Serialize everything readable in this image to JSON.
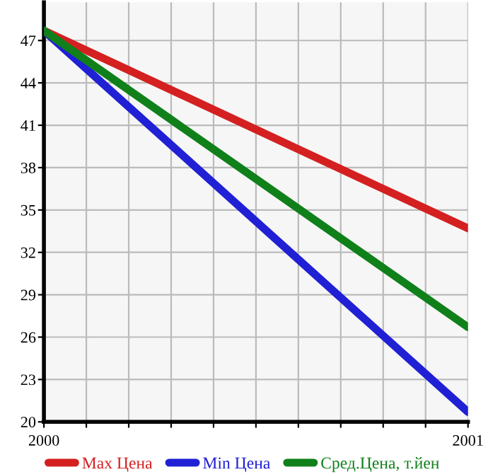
{
  "chart_data": {
    "type": "line",
    "x": [
      2000,
      2001
    ],
    "series": [
      {
        "name": "Max Цена",
        "color": "#d42020",
        "values": [
          47.7,
          33.7
        ]
      },
      {
        "name": "Min Цена",
        "color": "#2020d4",
        "values": [
          47.7,
          20.7
        ]
      },
      {
        "name": "Сред.Цена, т.йен",
        "color": "#10801a",
        "values": [
          47.7,
          26.7
        ]
      }
    ],
    "xlim": [
      2000,
      2001
    ],
    "ylim": [
      20,
      49.7
    ],
    "xticks": [
      2000,
      {
        "value": 2000.1,
        "label": null
      },
      {
        "value": 2000.2,
        "label": null
      },
      {
        "value": 2000.3,
        "label": null
      },
      {
        "value": 2000.4,
        "label": null
      },
      {
        "value": 2000.5,
        "label": null
      },
      {
        "value": 2000.6,
        "label": null
      },
      {
        "value": 2000.7,
        "label": null
      },
      {
        "value": 2000.8,
        "label": null
      },
      {
        "value": 2000.9,
        "label": null
      },
      2001
    ],
    "yticks": [
      20,
      23,
      26,
      29,
      32,
      35,
      38,
      41,
      44,
      47
    ],
    "grid": true,
    "legend": "bottom",
    "marker": "none",
    "line_style": "solid"
  }
}
